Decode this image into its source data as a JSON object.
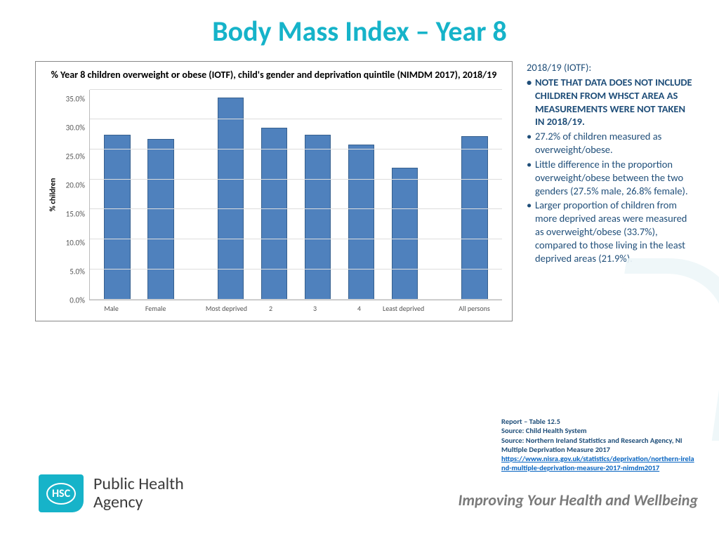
{
  "title": "Body Mass Index – Year 8",
  "chart": {
    "type": "bar",
    "title": "% Year 8 children overweight or obese (IOTF), child's gender and deprivation quintile (NIMDM 2017), 2018/19",
    "ylabel": "% children",
    "ymax": 35.0,
    "ytick_step": 5.0,
    "yticks": [
      "35.0%",
      "30.0%",
      "25.0%",
      "20.0%",
      "15.0%",
      "10.0%",
      "5.0%",
      "0.0%"
    ],
    "bar_color": "#4f81bd",
    "bar_border": "#37608e",
    "grid_color": "#dddddd",
    "axis_color": "#bbbbbb",
    "background": "#ffffff",
    "bars": [
      {
        "label": "Male",
        "value": 27.5,
        "group": 0
      },
      {
        "label": "Female",
        "value": 26.8,
        "group": 0
      },
      {
        "label": "Most deprived",
        "value": 33.7,
        "group": 1
      },
      {
        "label": "2",
        "value": 28.6,
        "group": 1
      },
      {
        "label": "3",
        "value": 27.4,
        "group": 1
      },
      {
        "label": "4",
        "value": 25.8,
        "group": 1
      },
      {
        "label": "Least deprived",
        "value": 21.9,
        "group": 1
      },
      {
        "label": "All persons",
        "value": 27.2,
        "group": 2
      }
    ]
  },
  "side": {
    "head": "2018/19 (IOTF):",
    "bullets": [
      {
        "text": "NOTE THAT DATA DOES NOT INCLUDE CHILDREN FROM WHSCT AREA AS MEASUREMENTS WERE NOT TAKEN IN 2018/19.",
        "bold": true
      },
      {
        "text": "27.2% of children measured as overweight/obese.",
        "bold": false
      },
      {
        "text": "Little difference in the proportion overweight/obese between the two genders (27.5% male, 26.8% female).",
        "bold": false
      },
      {
        "text": "Larger proportion of children from more deprived areas were measured as overweight/obese (33.7%), compared to those living in the least deprived areas (21.9%).",
        "bold": false
      }
    ]
  },
  "footnotes": {
    "line1": "Report – Table 12.5",
    "line2": "Source: Child Health System",
    "line3": "Source: Northern Ireland Statistics and Research Agency, NI Multiple Deprivation Measure 2017",
    "link": "https://www.nisra.gov.uk/statistics/deprivation/northern-ireland-multiple-deprivation-measure-2017-nimdm2017"
  },
  "logo": {
    "badge": "HSC",
    "text1": "Public Health",
    "text2": "Agency"
  },
  "tagline": "Improving Your Health and Wellbeing",
  "colors": {
    "brand": "#16b3c9",
    "text_dark": "#1f4e79",
    "tagline": "#7a7a7a",
    "link": "#0563c1"
  }
}
